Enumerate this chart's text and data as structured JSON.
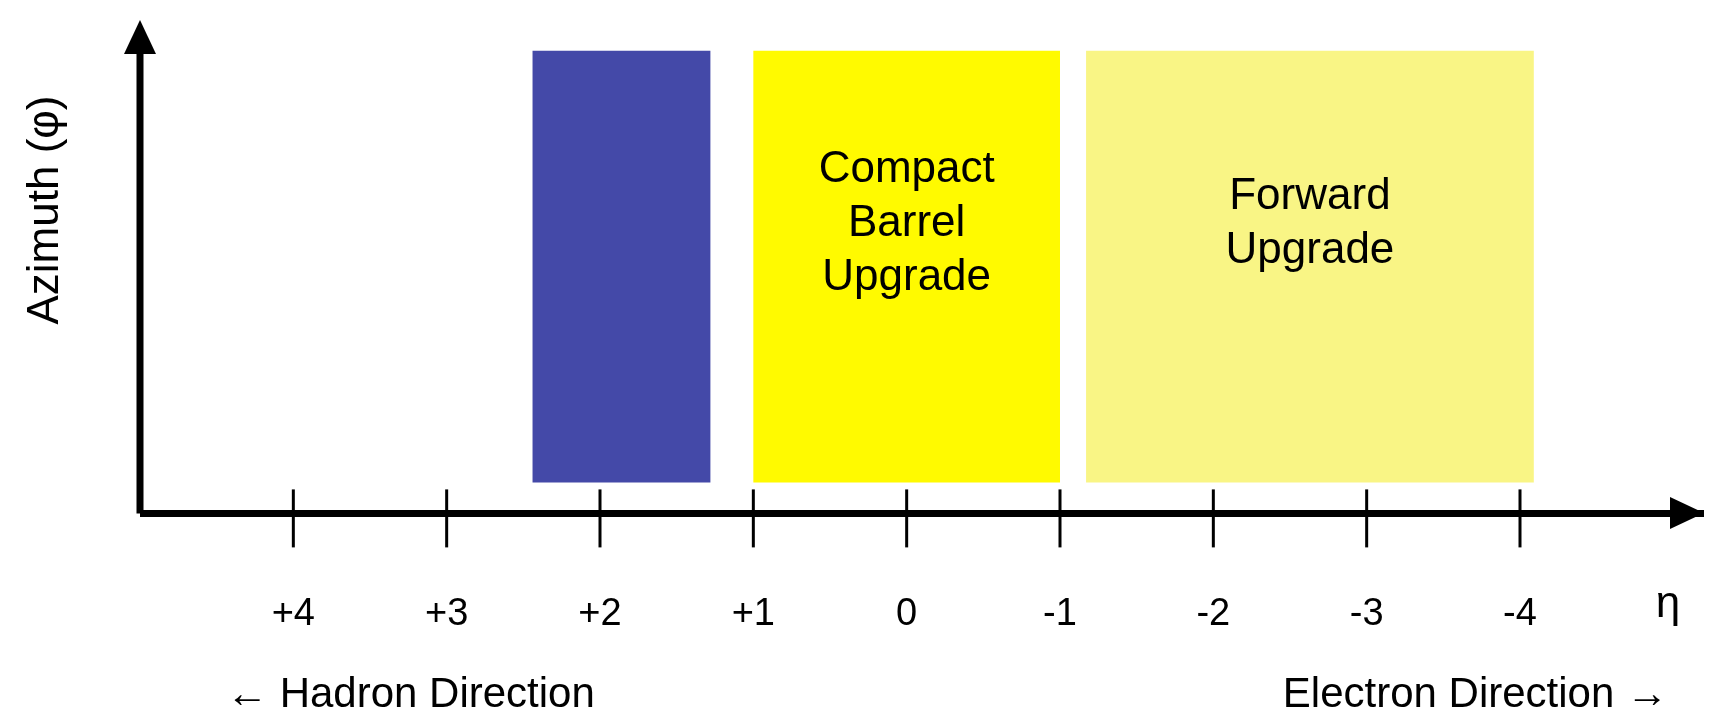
{
  "chart_data": {
    "type": "bar",
    "orientation": "horizontal",
    "xlabel": "η",
    "ylabel": "Azimuth (φ)",
    "xlim": [
      5,
      -5.2
    ],
    "xticks": [
      {
        "value": 4,
        "label": "+4"
      },
      {
        "value": 3,
        "label": "+3"
      },
      {
        "value": 2,
        "label": "+2"
      },
      {
        "value": 1,
        "label": "+1"
      },
      {
        "value": 0,
        "label": "0"
      },
      {
        "value": -1,
        "label": "-1"
      },
      {
        "value": -2,
        "label": "-2"
      },
      {
        "value": -3,
        "label": "-3"
      },
      {
        "value": -4,
        "label": "-4"
      }
    ],
    "categories": [
      null
    ],
    "series": [
      {
        "color": "#4449a8",
        "values": [
          -1.16
        ],
        "base": [
          2.44
        ]
      },
      {
        "name": "Compact\nBarrel\nUpgrade",
        "color": "#fffa00",
        "values": [
          -2
        ],
        "base": [
          1
        ]
      },
      {
        "name": "Forward\nUpgrade",
        "color": "#f9f585",
        "values": [
          -2.92
        ],
        "base": [
          -1.17
        ]
      }
    ],
    "annotations": [
      "← Hadron Direction",
      "Electron Direction →"
    ]
  }
}
